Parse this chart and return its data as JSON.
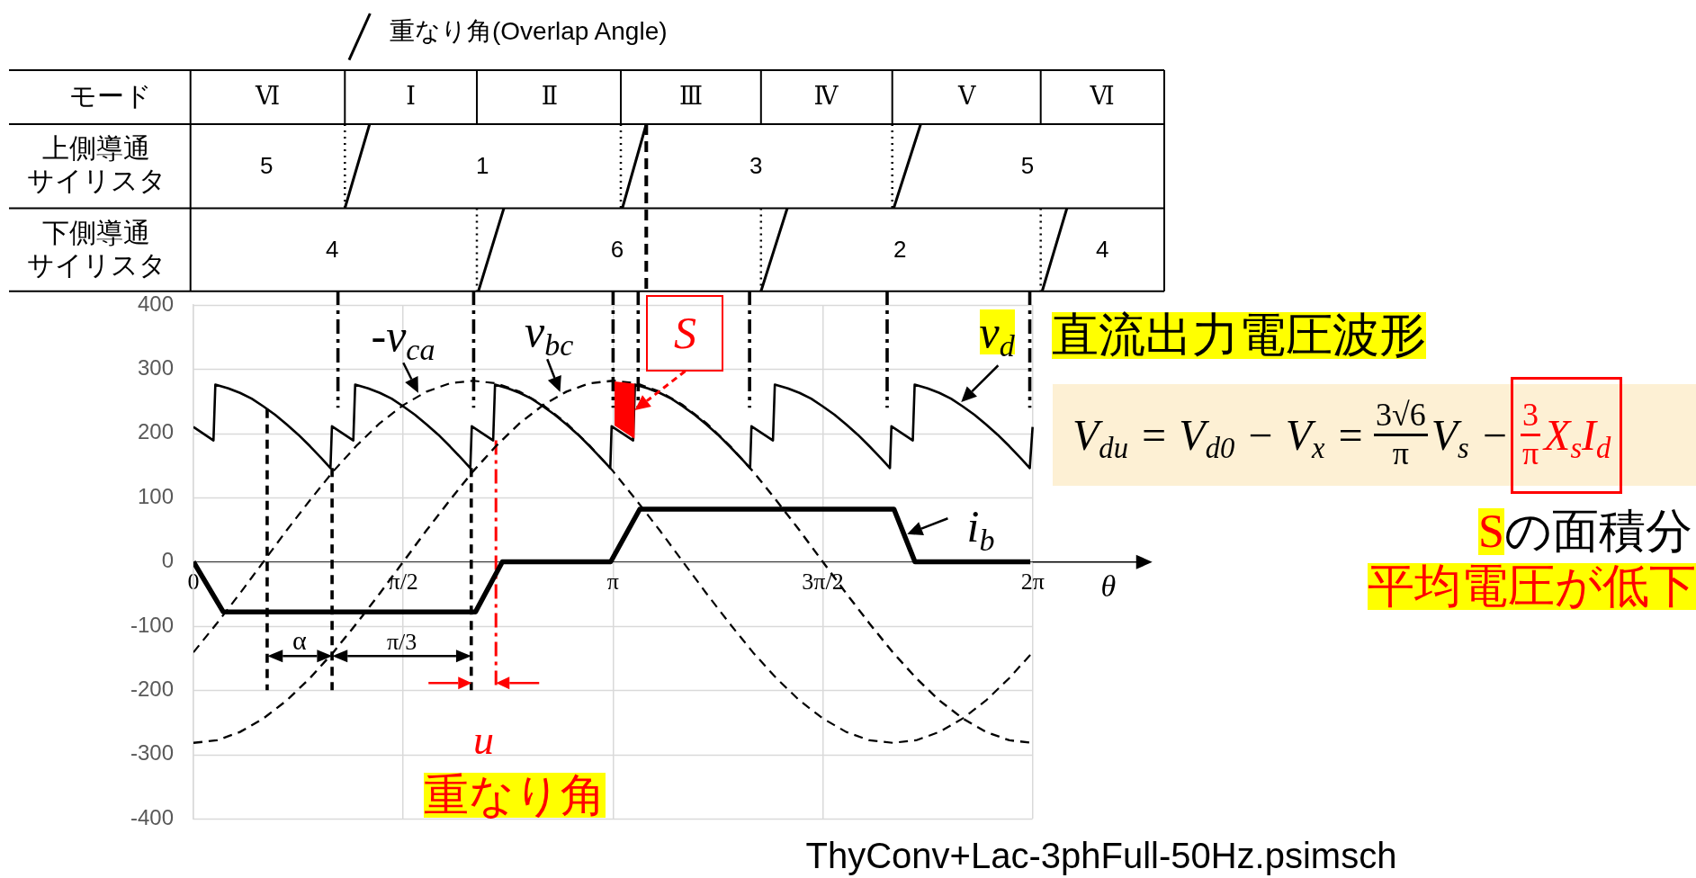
{
  "chart_data": {
    "type": "line",
    "xlabel": "θ",
    "xlim": [
      0,
      7.06
    ],
    "xticks": [
      0,
      {
        "value": 1.5708,
        "label": "π/2"
      },
      {
        "value": 3.1416,
        "label": "π"
      },
      {
        "value": 4.7124,
        "label": "3π/2"
      },
      {
        "value": 6.2832,
        "label": "2π"
      }
    ],
    "ylim": [
      -400,
      400
    ],
    "yticks": [
      -400,
      -300,
      -200,
      -100,
      0,
      100,
      200,
      300,
      400
    ],
    "grid": true,
    "marker": "none",
    "x": [
      0,
      0.175,
      0.349,
      0.524,
      0.698,
      0.873,
      1.047,
      1.222,
      1.396,
      1.571,
      1.745,
      1.92,
      2.094,
      2.269,
      2.443,
      2.618,
      2.793,
      2.967,
      3.142,
      3.316,
      3.491,
      3.665,
      3.84,
      4.014,
      4.189,
      4.363,
      4.538,
      4.712,
      4.887,
      5.061,
      5.236,
      5.411,
      5.585,
      5.76,
      5.934,
      6.109,
      6.283
    ],
    "series": [
      {
        "color": "#000000",
        "line_style": "solid",
        "x": [
          0,
          0.15,
          0.164,
          0.262,
          0.349,
          0.436,
          0.524,
          0.611,
          0.698,
          0.785,
          0.873,
          0.96,
          1.026,
          1.037,
          1.197,
          1.211,
          1.309,
          1.396,
          1.484,
          1.571,
          1.658,
          1.745,
          1.833,
          1.92,
          2.007,
          2.073,
          2.084,
          2.244,
          2.258,
          2.356,
          2.443,
          2.531,
          2.618,
          2.705,
          2.793,
          2.88,
          2.967,
          3.054,
          3.121,
          3.131,
          3.292,
          3.306,
          3.403,
          3.491,
          3.578,
          3.665,
          3.752,
          3.84,
          3.927,
          4.014,
          4.102,
          4.168,
          4.178,
          4.339,
          4.353,
          4.451,
          4.538,
          4.625,
          4.712,
          4.8,
          4.887,
          4.974,
          5.061,
          5.149,
          5.215,
          5.226,
          5.386,
          5.4,
          5.498,
          5.585,
          5.672,
          5.76,
          5.847,
          5.934,
          6.021,
          6.109,
          6.196,
          6.262,
          6.283
        ],
        "values": [
          210,
          189,
          276,
          270,
          263,
          254,
          242,
          229,
          214,
          198,
          180,
          161,
          146,
          211,
          189,
          276,
          270,
          263,
          254,
          242,
          229,
          214,
          198,
          180,
          161,
          146,
          211,
          189,
          276,
          270,
          263,
          254,
          242,
          229,
          214,
          198,
          180,
          161,
          146,
          211,
          189,
          276,
          270,
          263,
          254,
          242,
          229,
          214,
          198,
          180,
          161,
          146,
          211,
          189,
          276,
          270,
          263,
          254,
          242,
          229,
          214,
          198,
          180,
          161,
          146,
          211,
          189,
          276,
          270,
          263,
          254,
          242,
          229,
          214,
          198,
          180,
          161,
          146,
          210
        ]
      },
      {
        "color": "#000000",
        "line_style": "dashed",
        "values": [
          -141,
          -96,
          -49,
          0,
          49,
          96,
          141,
          181,
          216,
          244,
          265,
          278,
          282,
          278,
          265,
          244,
          216,
          181,
          141,
          96,
          49,
          0,
          -49,
          -96,
          -141,
          -181,
          -216,
          -244,
          -265,
          -278,
          -282,
          -278,
          -265,
          -244,
          -216,
          -181,
          -141
        ]
      },
      {
        "color": "#000000",
        "line_style": "dashed",
        "values": [
          -282,
          -278,
          -265,
          -244,
          -216,
          -181,
          -141,
          -96,
          -49,
          0,
          49,
          96,
          141,
          181,
          216,
          244,
          265,
          278,
          282,
          278,
          265,
          244,
          216,
          181,
          141,
          96,
          49,
          0,
          -49,
          -96,
          -141,
          -181,
          -216,
          -244,
          -265,
          -278,
          -282
        ]
      },
      {
        "name": "i$_{b}$",
        "color": "#000000",
        "line_style": "solid",
        "x": [
          0,
          0.223,
          2.112,
          2.313,
          3.124,
          3.342,
          5.245,
          5.402,
          6.266
        ],
        "values": [
          0,
          -78,
          -78,
          0,
          0,
          82,
          82,
          0,
          0
        ]
      }
    ],
    "ref_lines": [
      {
        "axis": "x",
        "value": 0.552,
        "line_style": "dashed"
      },
      {
        "axis": "x",
        "value": 1.038,
        "line_style": "dashed"
      },
      {
        "axis": "x",
        "value": 2.08,
        "line_style": "dashed"
      },
      {
        "axis": "x",
        "value": 2.265,
        "line_style": "dotted",
        "color": "#ff0000"
      },
      {
        "axis": "x",
        "value": 1.082,
        "line_style": "dotted"
      },
      {
        "axis": "x",
        "value": 2.098,
        "line_style": "dotted"
      },
      {
        "axis": "x",
        "value": 3.142,
        "line_style": "dotted"
      },
      {
        "axis": "x",
        "value": 3.33,
        "line_style": "dotted"
      },
      {
        "axis": "x",
        "value": 4.164,
        "line_style": "dotted"
      },
      {
        "axis": "x",
        "value": 5.194,
        "line_style": "dotted"
      },
      {
        "axis": "x",
        "value": 6.262,
        "line_style": "dotted"
      }
    ],
    "annotations": [
      "重なり角(Overlap Angle)",
      "モード",
      "Ⅵ",
      "Ⅰ",
      "Ⅱ",
      "Ⅲ",
      "Ⅳ",
      "Ⅴ",
      "Ⅵ",
      "上側導通",
      "サイリスタ",
      "5",
      "1",
      "3",
      "5",
      "下側導通",
      "サイリスタ",
      "4",
      "6",
      "2",
      "4",
      "直流出力電圧波形",
      "V$_{du}$ = V$_{d0}$ − V$_{x}$ =",
      "3√6",
      "π",
      "V$_{s}$ −",
      "3",
      "π",
      "X$_{s}$I$_{d}$",
      "S",
      "の面積分",
      "平均電圧が低下",
      "α",
      "π/3",
      "u",
      "重なり角",
      "ThyConv+Lac-3phFull-50Hz.psimsch",
      "S",
      "v$_{d}$",
      "-v$_{ca}$",
      "v$_{bc}$"
    ]
  }
}
